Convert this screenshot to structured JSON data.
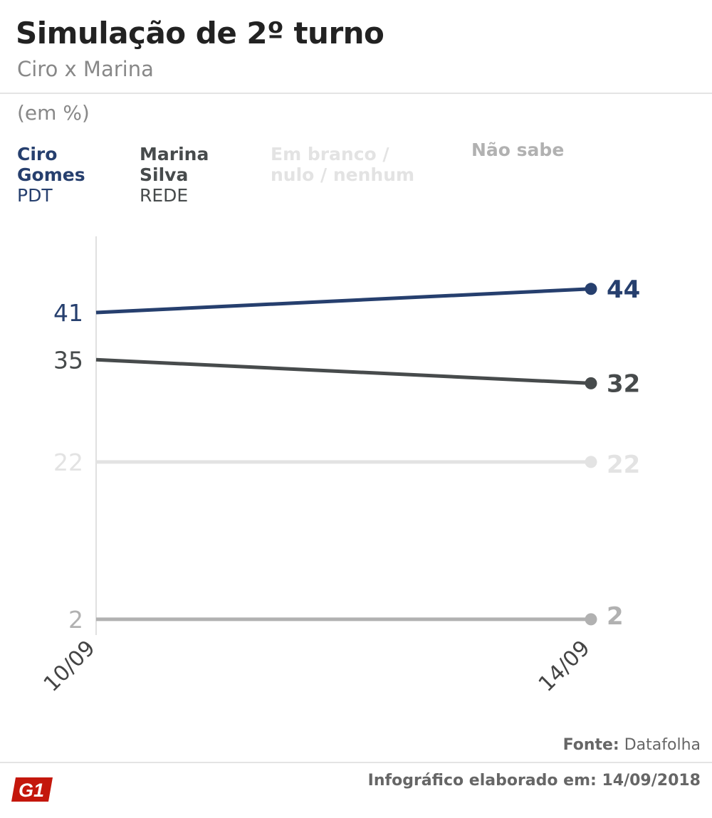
{
  "header": {
    "title": "Simulação de 2º turno",
    "subtitle": "Ciro x Marina",
    "unit": "(em %)"
  },
  "legend": [
    {
      "name_line1": "Ciro",
      "name_line2": "Gomes",
      "party": "PDT",
      "color": "#263f6e"
    },
    {
      "name_line1": "Marina",
      "name_line2": "Silva",
      "party": "REDE",
      "color": "#474b4c"
    },
    {
      "name_line1": "Em branco /",
      "name_line2": "nulo / nenhum",
      "party": "",
      "color": "#e3e3e3"
    },
    {
      "name_line1": "Não sabe",
      "name_line2": "",
      "party": "",
      "color": "#b1b1b1"
    }
  ],
  "chart_data": {
    "type": "line",
    "x": [
      "10/09",
      "14/09"
    ],
    "ylim": [
      0,
      50
    ],
    "grid": false,
    "series": [
      {
        "name": "Ciro Gomes",
        "values": [
          41,
          44
        ],
        "color": "#263f6e"
      },
      {
        "name": "Marina Silva",
        "values": [
          35,
          32
        ],
        "color": "#474b4c"
      },
      {
        "name": "Em branco / nulo / nenhum",
        "values": [
          22,
          22
        ],
        "color": "#e3e3e3"
      },
      {
        "name": "Não sabe",
        "values": [
          2,
          2
        ],
        "color": "#b1b1b1"
      }
    ]
  },
  "footer": {
    "source_label": "Fonte:",
    "source_value": "Datafolha",
    "date_text": "Infográfico elaborado em: 14/09/2018",
    "logo_text": "G1",
    "logo_color": "#c4170c"
  }
}
